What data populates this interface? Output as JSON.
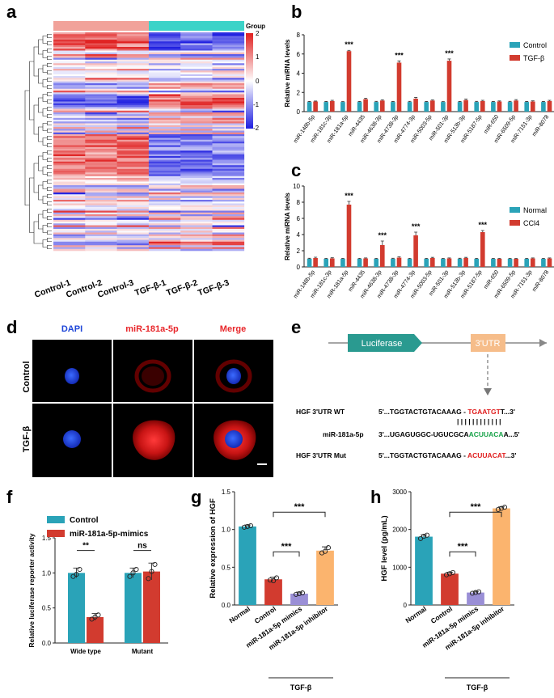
{
  "panel_labels": [
    "a",
    "b",
    "c",
    "d",
    "e",
    "f",
    "g",
    "h"
  ],
  "colors": {
    "control": "#2aa3b8",
    "tgf": "#d23b2f",
    "mimic": "#9a8fd6",
    "inhibitor": "#fbb46e",
    "dapi": "#1e46d8",
    "mir": "#e8262a",
    "red": "#e01e1e",
    "green": "#19a34a"
  },
  "heatmap": {
    "group_label": "Group",
    "samples": [
      "Control-1",
      "Control-2",
      "Control-3",
      "TGF-β-1",
      "TGF-β-2",
      "TGF-β-3"
    ],
    "scale_ticks": [
      "2",
      "1",
      "0",
      "-1",
      "-2"
    ],
    "group_colors": [
      "#f1a29a",
      "#3cd3c8"
    ],
    "scale_colors": [
      "#e02020",
      "#ffffff",
      "#1f1fe0"
    ]
  },
  "chart_data": [
    {
      "id": "b",
      "type": "bar",
      "ylabel": "Relative miRNA levels",
      "ylim": [
        0,
        8
      ],
      "yticks": [
        0,
        2,
        4,
        6,
        8
      ],
      "categories": [
        "miR-148b-5p",
        "miR-181c-3p",
        "miR-181a-5p",
        "miR-4435",
        "miR-4638-3p",
        "miR-4738-3p",
        "miR-4774-3p",
        "miR-5003-5p",
        "miR-501-3p",
        "miR-513b-3p",
        "miR-5187-5p",
        "miR-650",
        "miR-6509-5p",
        "miR-7151-3p",
        "miR-8078"
      ],
      "series": [
        {
          "name": "Control",
          "values": [
            1,
            1,
            1,
            1,
            1,
            1,
            1,
            1,
            1,
            1,
            1,
            1,
            1,
            1,
            1
          ],
          "errors": [
            0.06,
            0.06,
            0.05,
            0.06,
            0.07,
            0.06,
            0.07,
            0.06,
            0.05,
            0.06,
            0.07,
            0.06,
            0.07,
            0.06,
            0.06
          ]
        },
        {
          "name": "TGF-β",
          "values": [
            1.05,
            1.1,
            6.3,
            1.3,
            1.15,
            5.1,
            1.35,
            1.15,
            5.3,
            1.2,
            1.1,
            1.05,
            1.15,
            1.05,
            1.1
          ],
          "errors": [
            0.05,
            0.08,
            0.08,
            0.1,
            0.08,
            0.18,
            0.12,
            0.07,
            0.18,
            0.1,
            0.08,
            0.06,
            0.1,
            0.07,
            0.08
          ]
        }
      ],
      "significance": [
        {
          "index": 2,
          "label": "***"
        },
        {
          "index": 5,
          "label": "***"
        },
        {
          "index": 8,
          "label": "***"
        }
      ]
    },
    {
      "id": "c",
      "type": "bar",
      "ylabel": "Relative miRNA levels",
      "ylim": [
        0,
        10
      ],
      "yticks": [
        0,
        2,
        4,
        6,
        8,
        10
      ],
      "categories": [
        "miR-148b-5p",
        "miR-181c-3p",
        "miR-181a-5p",
        "miR-4435",
        "miR-4638-3p",
        "miR-4738-3p",
        "miR-4774-3p",
        "miR-5003-5p",
        "miR-501-3p",
        "miR-513b-3p",
        "miR-5187-5p",
        "miR-650",
        "miR-6509-5p",
        "miR-7151-3p",
        "miR-8078"
      ],
      "series": [
        {
          "name": "Normal",
          "values": [
            1,
            1,
            1,
            1,
            1,
            1,
            1,
            1,
            1,
            1,
            1,
            1,
            1,
            1,
            1
          ],
          "errors": [
            0.07,
            0.06,
            0.06,
            0.06,
            0.06,
            0.07,
            0.06,
            0.06,
            0.06,
            0.07,
            0.06,
            0.06,
            0.06,
            0.06,
            0.06
          ]
        },
        {
          "name": "CCl4",
          "values": [
            1.1,
            1.05,
            7.7,
            1.05,
            2.7,
            1.15,
            3.9,
            1.1,
            1.05,
            1.1,
            4.3,
            1.0,
            1.0,
            1.05,
            1.05
          ],
          "errors": [
            0.1,
            0.08,
            0.4,
            0.06,
            0.5,
            0.1,
            0.4,
            0.08,
            0.06,
            0.08,
            0.2,
            0.05,
            0.05,
            0.06,
            0.06
          ]
        }
      ],
      "significance": [
        {
          "index": 2,
          "label": "***"
        },
        {
          "index": 4,
          "label": "***"
        },
        {
          "index": 6,
          "label": "***"
        },
        {
          "index": 10,
          "label": "***"
        }
      ]
    },
    {
      "id": "f",
      "type": "bar",
      "ylabel": "Relative luciferase reporter activity",
      "ylim": [
        0,
        1.5
      ],
      "yticks": [
        0,
        0.5,
        1.0,
        1.5
      ],
      "categories": [
        "Wide type",
        "Mutant"
      ],
      "series": [
        {
          "name": "Control",
          "values": [
            1.0,
            1.0
          ],
          "errors": [
            0.07,
            0.07
          ],
          "points": [
            [
              0.95,
              1.05,
              0.98
            ],
            [
              0.95,
              1.05,
              1.0
            ]
          ]
        },
        {
          "name": "miR-181a-5p-mimics",
          "values": [
            0.37,
            1.02
          ],
          "errors": [
            0.05,
            0.12
          ],
          "points": [
            [
              0.34,
              0.4,
              0.37
            ],
            [
              0.92,
              1.12,
              1.02
            ]
          ]
        }
      ],
      "significance": [
        {
          "category": 0,
          "label": "**"
        },
        {
          "category": 1,
          "label": "ns"
        }
      ]
    },
    {
      "id": "g",
      "type": "bar",
      "ylabel": "Relative expression of HGF",
      "ylim": [
        0,
        1.5
      ],
      "yticks": [
        0,
        0.5,
        1.0,
        1.5
      ],
      "categories": [
        "Normal",
        "Control",
        "miR-181a-5p mimics",
        "miR-181a-5p inhibitor"
      ],
      "values": [
        1.04,
        0.34,
        0.15,
        0.72
      ],
      "errors": [
        0.02,
        0.03,
        0.02,
        0.05
      ],
      "points": [
        [
          1.03,
          1.05,
          1.04
        ],
        [
          0.33,
          0.36,
          0.32
        ],
        [
          0.14,
          0.16,
          0.15
        ],
        [
          0.69,
          0.76,
          0.71
        ]
      ],
      "group_label": "TGF-β",
      "significance": [
        {
          "from": 1,
          "to": 2,
          "label": "***"
        },
        {
          "from": 1,
          "to": 3,
          "label": "***"
        }
      ]
    },
    {
      "id": "h",
      "type": "bar",
      "ylabel": "HGF level (pg/mL)",
      "ylim": [
        0,
        3000
      ],
      "yticks": [
        0,
        1000,
        2000,
        3000
      ],
      "categories": [
        "Normal",
        "Control",
        "miR-181a-5p mimics",
        "miR-181a-5p inhibitor"
      ],
      "values": [
        1810,
        830,
        330,
        2560
      ],
      "errors": [
        50,
        40,
        30,
        40
      ],
      "points": [
        [
          1760,
          1850,
          1820
        ],
        [
          800,
          860,
          830
        ],
        [
          310,
          350,
          330
        ],
        [
          2530,
          2590,
          2560
        ]
      ],
      "group_label": "TGF-β",
      "significance": [
        {
          "from": 1,
          "to": 2,
          "label": "***"
        },
        {
          "from": 1,
          "to": 3,
          "label": "***"
        }
      ]
    }
  ],
  "microscopy": {
    "columns": [
      "DAPI",
      "miR-181a-5p",
      "Merge"
    ],
    "rows": [
      "Control",
      "TGF-β"
    ]
  },
  "construct": {
    "luciferase": "Luciferase",
    "utr": "3'UTR"
  },
  "alignment": {
    "wt_label": "HGF 3'UTR WT",
    "wt_prefix": "5'...TGGTACTGTACAAAG - ",
    "wt_site": "TGAATGT",
    "wt_suffix": "T...3'",
    "mir_label": "miR-181a-5p",
    "mir_prefix": "3'...UGAGUGGC-UGUCGCA",
    "mir_site": "ACUUACA",
    "mir_suffix": "A...5'",
    "mut_label": "HGF 3'UTR Mut",
    "mut_prefix": "5'...TGGTACTGTACAAAG - ",
    "mut_site": "ACUUACAT",
    "mut_suffix": "...3'",
    "pairing": "| | | | | | | | | | | |"
  }
}
